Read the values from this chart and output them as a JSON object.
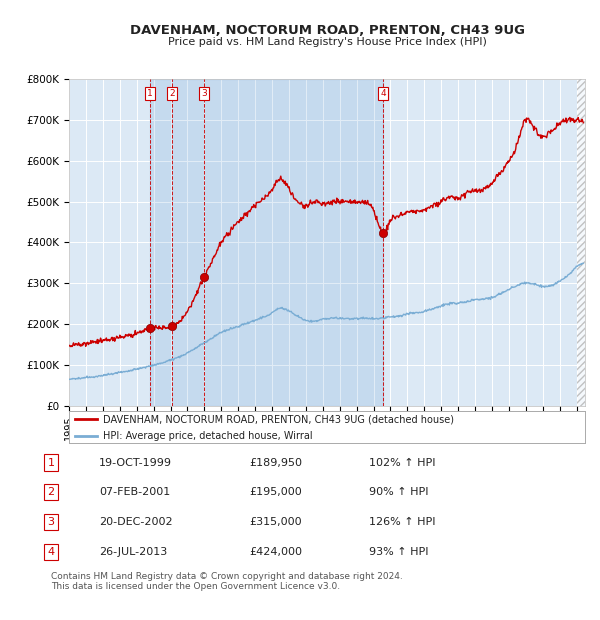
{
  "title": "DAVENHAM, NOCTORUM ROAD, PRENTON, CH43 9UG",
  "subtitle": "Price paid vs. HM Land Registry's House Price Index (HPI)",
  "background_color": "#ffffff",
  "plot_bg_color": "#dce9f5",
  "grid_color": "#ffffff",
  "transactions": [
    {
      "num": 1,
      "date": "19-OCT-1999",
      "year": 1999.8,
      "price": 189950,
      "hpi_pct": "102%"
    },
    {
      "num": 2,
      "date": "07-FEB-2001",
      "year": 2001.1,
      "price": 195000,
      "hpi_pct": "90%"
    },
    {
      "num": 3,
      "date": "20-DEC-2002",
      "year": 2002.97,
      "price": 315000,
      "hpi_pct": "126%"
    },
    {
      "num": 4,
      "date": "26-JUL-2013",
      "year": 2013.56,
      "price": 424000,
      "hpi_pct": "93%"
    }
  ],
  "property_line_color": "#cc0000",
  "hpi_line_color": "#7aadd4",
  "legend_property_label": "DAVENHAM, NOCTORUM ROAD, PRENTON, CH43 9UG (detached house)",
  "legend_hpi_label": "HPI: Average price, detached house, Wirral",
  "footer_line1": "Contains HM Land Registry data © Crown copyright and database right 2024.",
  "footer_line2": "This data is licensed under the Open Government Licence v3.0.",
  "ylim": [
    0,
    800000
  ],
  "yticks": [
    0,
    100000,
    200000,
    300000,
    400000,
    500000,
    600000,
    700000,
    800000
  ],
  "ytick_labels": [
    "£0",
    "£100K",
    "£200K",
    "£300K",
    "£400K",
    "£500K",
    "£600K",
    "£700K",
    "£800K"
  ],
  "xmin": 1995,
  "xmax": 2025.5,
  "table_rows": [
    {
      "num": "1",
      "date": "19-OCT-1999",
      "price": "£189,950",
      "hpi": "102% ↑ HPI"
    },
    {
      "num": "2",
      "date": "07-FEB-2001",
      "price": "£195,000",
      "hpi": "90% ↑ HPI"
    },
    {
      "num": "3",
      "date": "20-DEC-2002",
      "price": "£315,000",
      "hpi": "126% ↑ HPI"
    },
    {
      "num": "4",
      "date": "26-JUL-2013",
      "price": "£424,000",
      "hpi": "93% ↑ HPI"
    }
  ]
}
